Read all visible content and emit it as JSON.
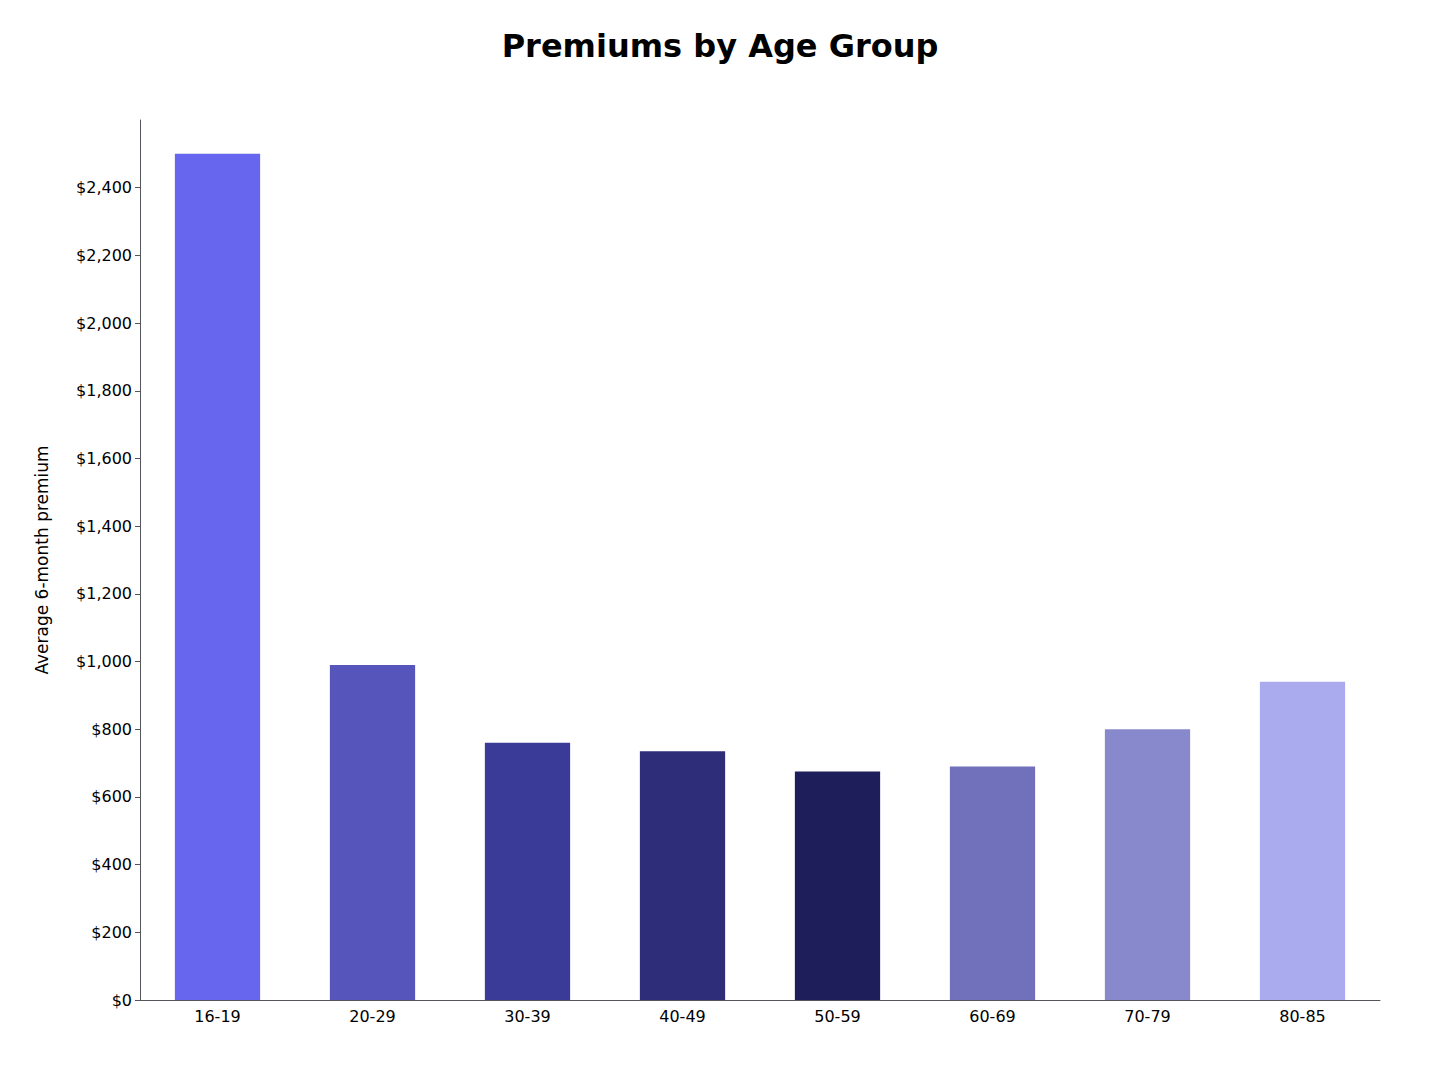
{
  "chart_data": {
    "type": "bar",
    "title": "Premiums by Age Group",
    "ylabel": "Average 6-month premium",
    "categories": [
      "16-19",
      "20-29",
      "30-39",
      "40-49",
      "50-59",
      "60-69",
      "70-79",
      "80-85"
    ],
    "values": [
      2500,
      990,
      760,
      735,
      675,
      690,
      800,
      940
    ],
    "colors": [
      "#6666ee",
      "#5555bb",
      "#3a3a99",
      "#2d2d7a",
      "#1e1e5a",
      "#7070bb",
      "#8888cc",
      "#aaaaee"
    ],
    "ylim": [
      0,
      2600
    ],
    "yticks": [
      {
        "value": 0,
        "label": "$0"
      },
      {
        "value": 200,
        "label": "$200"
      },
      {
        "value": 400,
        "label": "$400"
      },
      {
        "value": 600,
        "label": "$600"
      },
      {
        "value": 800,
        "label": "$800"
      },
      {
        "value": 1000,
        "label": "$1,000"
      },
      {
        "value": 1200,
        "label": "$1,200"
      },
      {
        "value": 1400,
        "label": "$1,400"
      },
      {
        "value": 1600,
        "label": "$1,600"
      },
      {
        "value": 1800,
        "label": "$1,800"
      },
      {
        "value": 2000,
        "label": "$2,000"
      },
      {
        "value": 2200,
        "label": "$2,200"
      },
      {
        "value": 2400,
        "label": "$2,400"
      }
    ],
    "grid": false
  }
}
